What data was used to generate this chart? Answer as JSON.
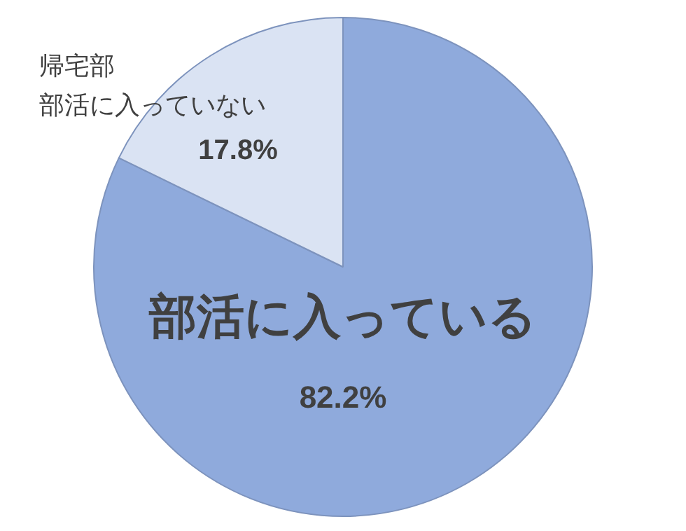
{
  "chart_data": {
    "type": "pie",
    "categories": [
      "部活に入っている",
      "部活に入っていない"
    ],
    "values": [
      82.2,
      17.8
    ],
    "value_labels": [
      "82.2%",
      "17.8%"
    ],
    "colors": [
      "#8faadc",
      "#dae3f3"
    ],
    "annotations": [
      "帰宅部"
    ],
    "legend": false
  }
}
